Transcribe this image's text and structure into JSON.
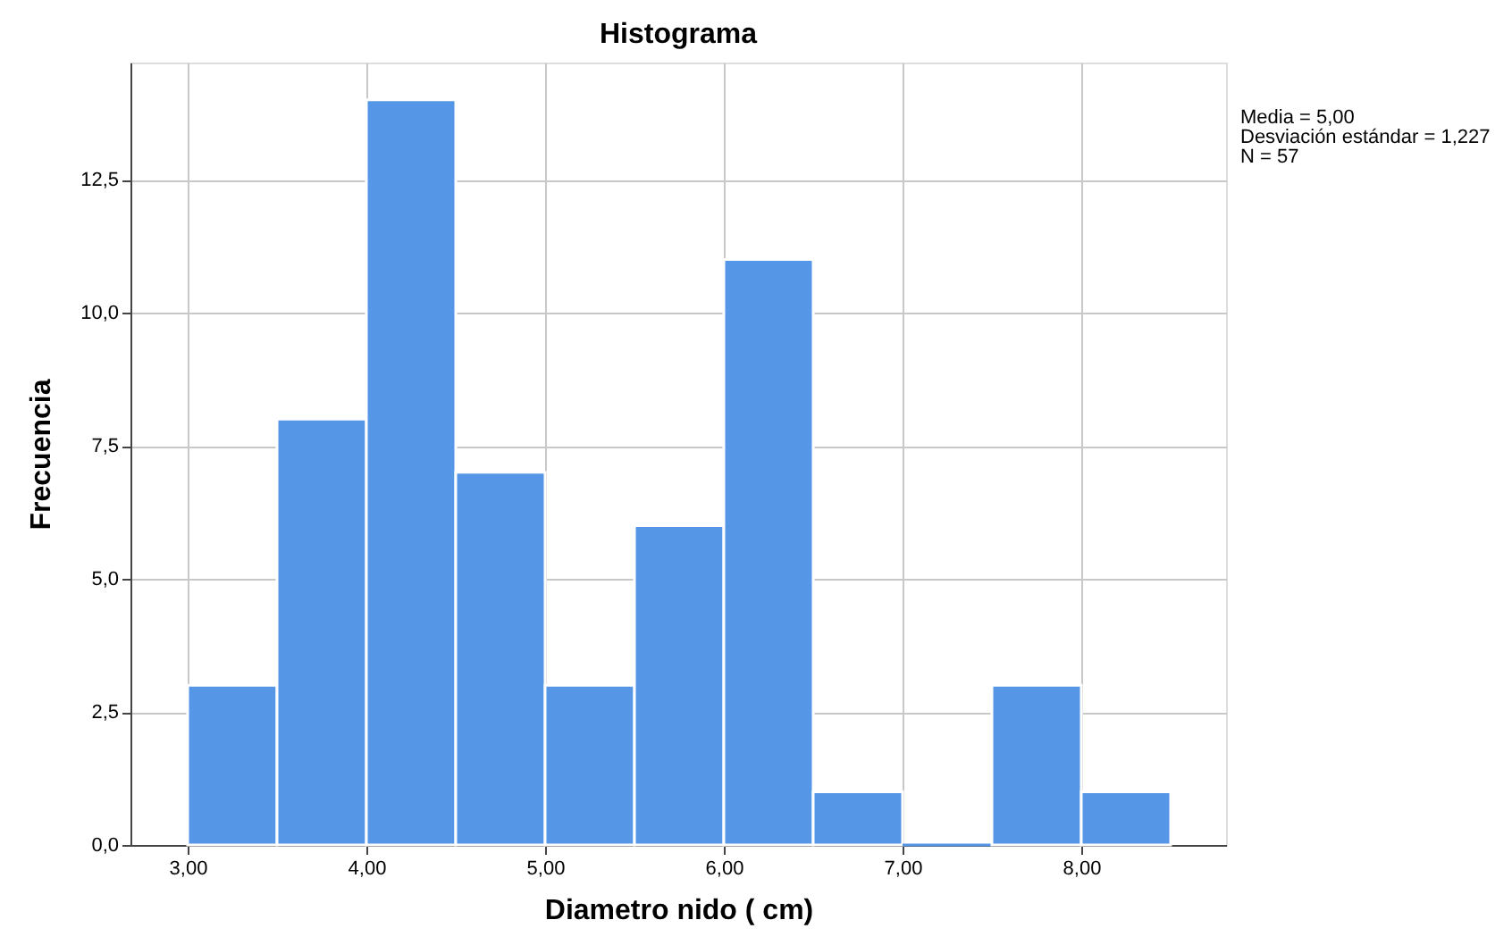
{
  "chart_data": {
    "type": "histogram",
    "title": "Histograma",
    "xlabel": "Diametro nido ( cm)",
    "ylabel": "Frecuencia",
    "bins": [
      3.0,
      3.5,
      4.0,
      4.5,
      5.0,
      5.5,
      6.0,
      6.5,
      7.0,
      7.5,
      8.0,
      8.5
    ],
    "values": [
      3,
      8,
      14,
      7,
      3,
      6,
      11,
      1,
      0,
      3,
      1
    ],
    "color": "#5596e6",
    "xlim": [
      2.68,
      8.81
    ],
    "xticks": [
      {
        "value": 3,
        "label": "3,00"
      },
      {
        "value": 4,
        "label": "4,00"
      },
      {
        "value": 5,
        "label": "5,00"
      },
      {
        "value": 6,
        "label": "6,00"
      },
      {
        "value": 7,
        "label": "7,00"
      },
      {
        "value": 8,
        "label": "8,00"
      }
    ],
    "ylim": [
      0,
      14.7
    ],
    "yticks": [
      {
        "value": 0,
        "label": "0,0"
      },
      {
        "value": 2.5,
        "label": "2,5"
      },
      {
        "value": 5,
        "label": "5,0"
      },
      {
        "value": 7.5,
        "label": "7,5"
      },
      {
        "value": 10,
        "label": "10,0"
      },
      {
        "value": 12.5,
        "label": "12,5"
      }
    ],
    "grid": true,
    "annotations": [
      "Media = 5,00",
      "Desviación estándar = 1,227",
      "N = 57"
    ]
  }
}
